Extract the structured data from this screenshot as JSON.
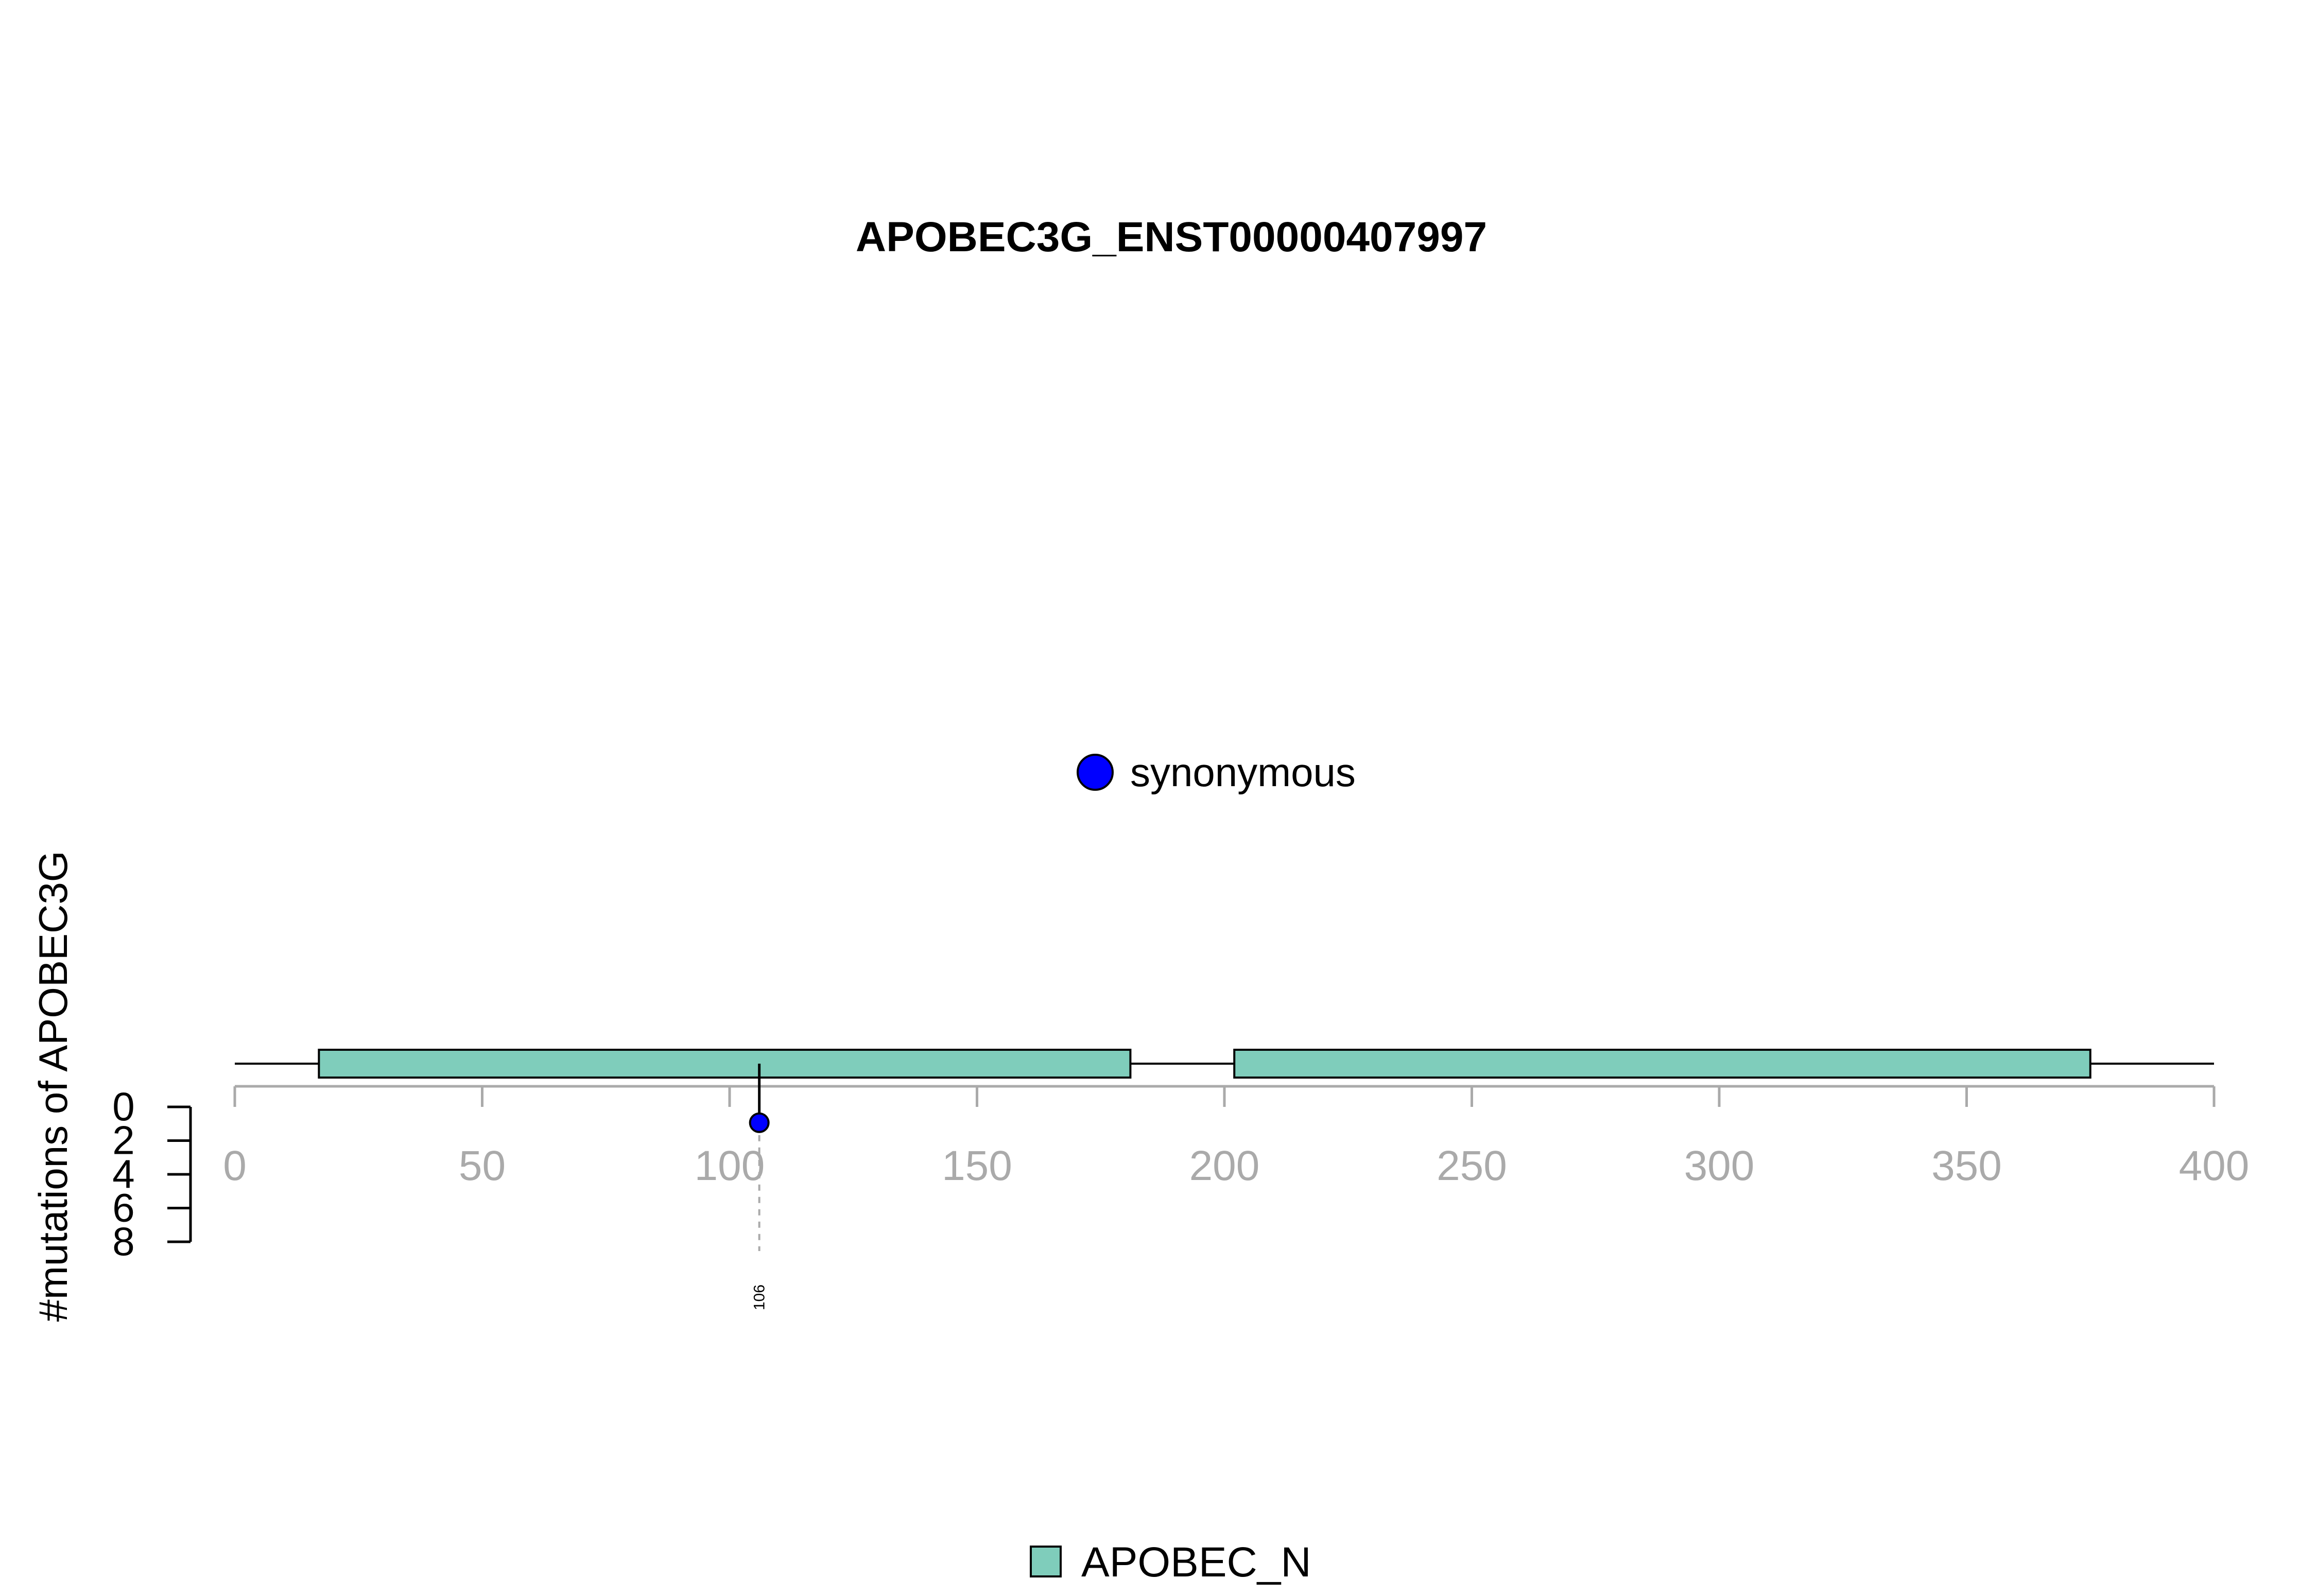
{
  "chart_data": {
    "type": "lollipop",
    "title": "APOBEC3G_ENST00000407997",
    "ylabel": "#mutations of APOBEC3G",
    "xlim": [
      0,
      400
    ],
    "x_ticks": [
      0,
      50,
      100,
      150,
      200,
      250,
      300,
      350,
      400
    ],
    "y_ticks": [
      0,
      2,
      4,
      6,
      8
    ],
    "ylim": [
      0,
      8
    ],
    "protein_length": 400,
    "domains": [
      {
        "name": "APOBEC_N",
        "start": 17,
        "end": 181
      },
      {
        "name": "APOBEC_N",
        "start": 202,
        "end": 375
      }
    ],
    "mutations": [
      {
        "position": 106,
        "count": 1,
        "type": "synonymous",
        "label": "106"
      }
    ],
    "mutation_legend": [
      {
        "type": "synonymous",
        "color": "#0000ff"
      }
    ],
    "domain_legend": [
      {
        "name": "APOBEC_N",
        "color": "#7fcdbb"
      }
    ]
  }
}
